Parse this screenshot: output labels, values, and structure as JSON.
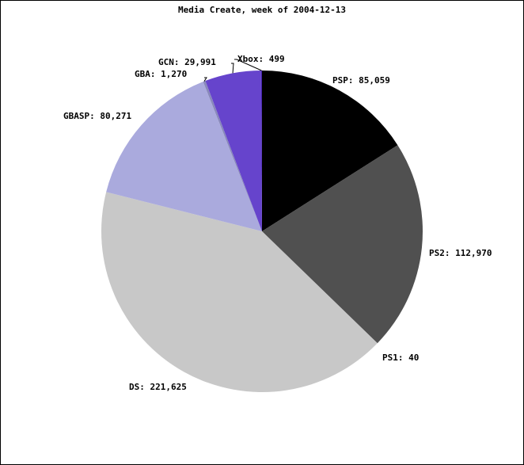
{
  "chart_data": {
    "type": "pie",
    "title": "Media Create, week of 2004-12-13",
    "values": [
      85059,
      112970,
      40,
      221625,
      80271,
      1270,
      29991,
      499
    ],
    "value_labels": [
      "PSP: 85,059",
      "PS2: 112,970",
      "PS1: 40",
      "DS: 221,625",
      "GBASP: 80,271",
      "GBA: 1,270",
      "GCN: 29,991",
      "Xbox: 499"
    ],
    "colors": [
      "#000000",
      "#505050",
      "#808080",
      "#c8c8c8",
      "#aaaadd",
      "#8888bb",
      "#6644cc",
      "#4422aa"
    ]
  }
}
